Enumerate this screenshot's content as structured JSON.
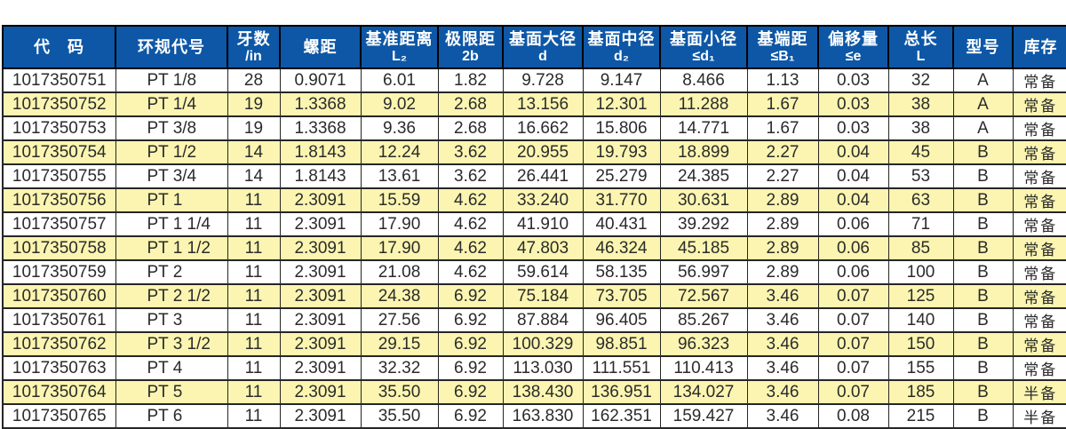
{
  "table": {
    "columns": [
      {
        "key": "code",
        "label": "代　码",
        "sub": ""
      },
      {
        "key": "gauge-code",
        "label": "环规代号",
        "sub": ""
      },
      {
        "key": "threads-per-inch",
        "label": "牙数",
        "sub": "/in"
      },
      {
        "key": "pitch",
        "label": "螺距",
        "sub": ""
      },
      {
        "key": "datum-distance",
        "label": "基准距离",
        "sub": "L₂"
      },
      {
        "key": "limit-distance",
        "label": "极限距",
        "sub": "2b"
      },
      {
        "key": "base-major-dia",
        "label": "基面大径",
        "sub": "d"
      },
      {
        "key": "base-pitch-dia",
        "label": "基面中径",
        "sub": "d₂"
      },
      {
        "key": "base-minor-dia",
        "label": "基面小径",
        "sub": "≤d₁"
      },
      {
        "key": "base-end-distance",
        "label": "基端距",
        "sub": "≤B₁"
      },
      {
        "key": "offset",
        "label": "偏移量",
        "sub": "≤e"
      },
      {
        "key": "total-length",
        "label": "总长",
        "sub": "L"
      },
      {
        "key": "type",
        "label": "型号",
        "sub": ""
      },
      {
        "key": "stock",
        "label": "库存",
        "sub": ""
      }
    ],
    "rows": [
      [
        "1017350751",
        "PT 1/8",
        "28",
        "0.9071",
        "6.01",
        "1.82",
        "9.728",
        "9.147",
        "8.466",
        "1.13",
        "0.03",
        "32",
        "A",
        "常备"
      ],
      [
        "1017350752",
        "PT 1/4",
        "19",
        "1.3368",
        "9.02",
        "2.68",
        "13.156",
        "12.301",
        "11.288",
        "1.67",
        "0.03",
        "38",
        "A",
        "常备"
      ],
      [
        "1017350753",
        "PT 3/8",
        "19",
        "1.3368",
        "9.36",
        "2.68",
        "16.662",
        "15.806",
        "14.771",
        "1.67",
        "0.03",
        "38",
        "A",
        "常备"
      ],
      [
        "1017350754",
        "PT 1/2",
        "14",
        "1.8143",
        "12.24",
        "3.62",
        "20.955",
        "19.793",
        "18.899",
        "2.27",
        "0.04",
        "45",
        "B",
        "常备"
      ],
      [
        "1017350755",
        "PT 3/4",
        "14",
        "1.8143",
        "13.61",
        "3.62",
        "26.441",
        "25.279",
        "24.385",
        "2.27",
        "0.04",
        "53",
        "B",
        "常备"
      ],
      [
        "1017350756",
        "PT 1",
        "11",
        "2.3091",
        "15.59",
        "4.62",
        "33.240",
        "31.770",
        "30.631",
        "2.89",
        "0.04",
        "63",
        "B",
        "常备"
      ],
      [
        "1017350757",
        "PT 1 1/4",
        "11",
        "2.3091",
        "17.90",
        "4.62",
        "41.910",
        "40.431",
        "39.292",
        "2.89",
        "0.06",
        "71",
        "B",
        "常备"
      ],
      [
        "1017350758",
        "PT 1 1/2",
        "11",
        "2.3091",
        "17.90",
        "4.62",
        "47.803",
        "46.324",
        "45.185",
        "2.89",
        "0.06",
        "85",
        "B",
        "常备"
      ],
      [
        "1017350759",
        "PT 2",
        "11",
        "2.3091",
        "21.08",
        "4.62",
        "59.614",
        "58.135",
        "56.997",
        "2.89",
        "0.06",
        "100",
        "B",
        "常备"
      ],
      [
        "1017350760",
        "PT 2 1/2",
        "11",
        "2.3091",
        "24.38",
        "6.92",
        "75.184",
        "73.705",
        "72.567",
        "3.46",
        "0.07",
        "125",
        "B",
        "常备"
      ],
      [
        "1017350761",
        "PT 3",
        "11",
        "2.3091",
        "27.56",
        "6.92",
        "87.884",
        "96.405",
        "85.267",
        "3.46",
        "0.07",
        "140",
        "B",
        "常备"
      ],
      [
        "1017350762",
        "PT 3 1/2",
        "11",
        "2.3091",
        "29.15",
        "6.92",
        "100.329",
        "98.851",
        "96.323",
        "3.46",
        "0.07",
        "150",
        "B",
        "常备"
      ],
      [
        "1017350763",
        "PT 4",
        "11",
        "2.3091",
        "32.32",
        "6.92",
        "113.030",
        "111.551",
        "110.413",
        "3.46",
        "0.07",
        "155",
        "B",
        "常备"
      ],
      [
        "1017350764",
        "PT 5",
        "11",
        "2.3091",
        "35.50",
        "6.92",
        "138.430",
        "136.951",
        "134.027",
        "3.46",
        "0.07",
        "185",
        "B",
        "半备"
      ],
      [
        "1017350765",
        "PT 6",
        "11",
        "2.3091",
        "35.50",
        "6.92",
        "163.830",
        "162.351",
        "159.427",
        "3.46",
        "0.08",
        "215",
        "B",
        "半备"
      ]
    ]
  },
  "colors": {
    "header_bg": "#0d57a6",
    "header_text": "#ffffff",
    "row_bg": "#ffffff",
    "row_alt_bg": "#fbf5b1",
    "border": "#262626",
    "text": "#2b2b2b"
  }
}
